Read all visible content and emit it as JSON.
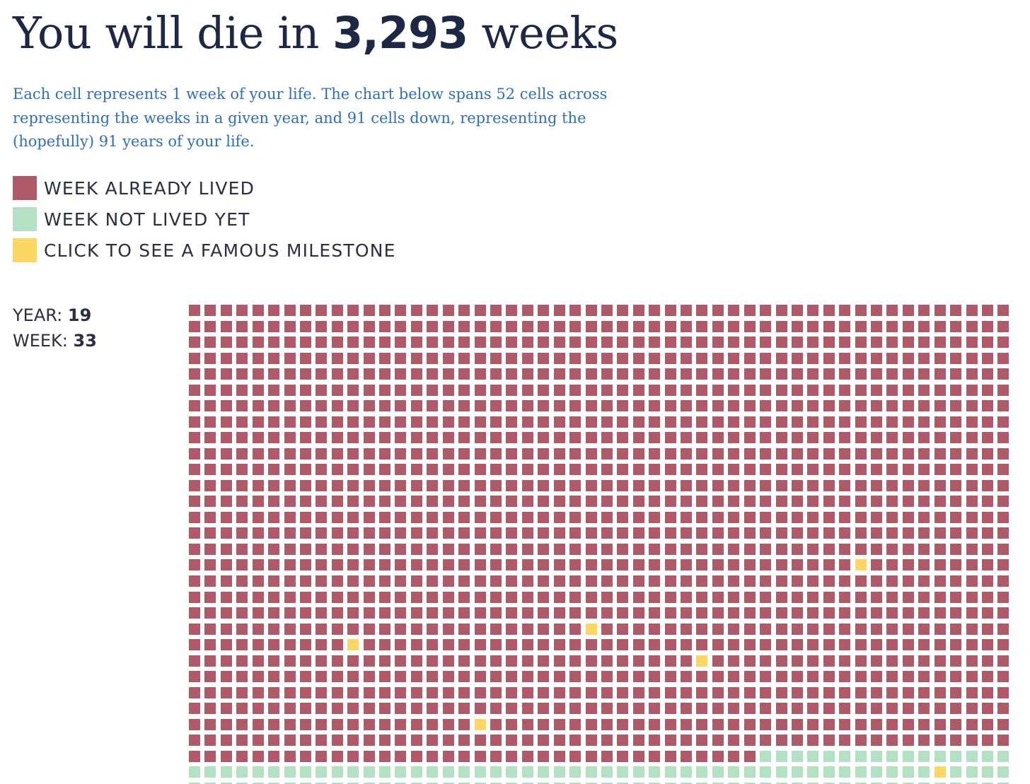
{
  "header": {
    "title_prefix": "You will die in",
    "weeks_remaining": "3,293",
    "title_suffix": "weeks"
  },
  "intro": {
    "description": "Each cell represents 1 week of your life. The chart below spans 52 cells across representing the weeks in a given year, and 91 cells down, representing the (hopefully) 91 years of your life."
  },
  "colors": {
    "lived": "#b05a69",
    "not_lived": "#b4e0c3",
    "milestone": "#fdd766"
  },
  "legend": {
    "items": [
      {
        "label": "WEEK ALREADY LIVED",
        "color": "#b05a69"
      },
      {
        "label": "WEEK NOT LIVED YET",
        "color": "#b4e0c3"
      },
      {
        "label": "CLICK TO SEE A FAMOUS MILESTONE",
        "color": "#fdd766"
      }
    ]
  },
  "readout": {
    "year_label": "YEAR:",
    "year_value": "19",
    "week_label": "WEEK:",
    "week_value": "33"
  },
  "life_grid": {
    "weeks_per_year": 52,
    "years_shown": 31,
    "current_year": 28,
    "current_week": 36,
    "milestones": [
      {
        "year": 16,
        "week": 42
      },
      {
        "year": 20,
        "week": 25
      },
      {
        "year": 21,
        "week": 10
      },
      {
        "year": 22,
        "week": 32
      },
      {
        "year": 26,
        "week": 18
      },
      {
        "year": 29,
        "week": 47
      }
    ]
  }
}
